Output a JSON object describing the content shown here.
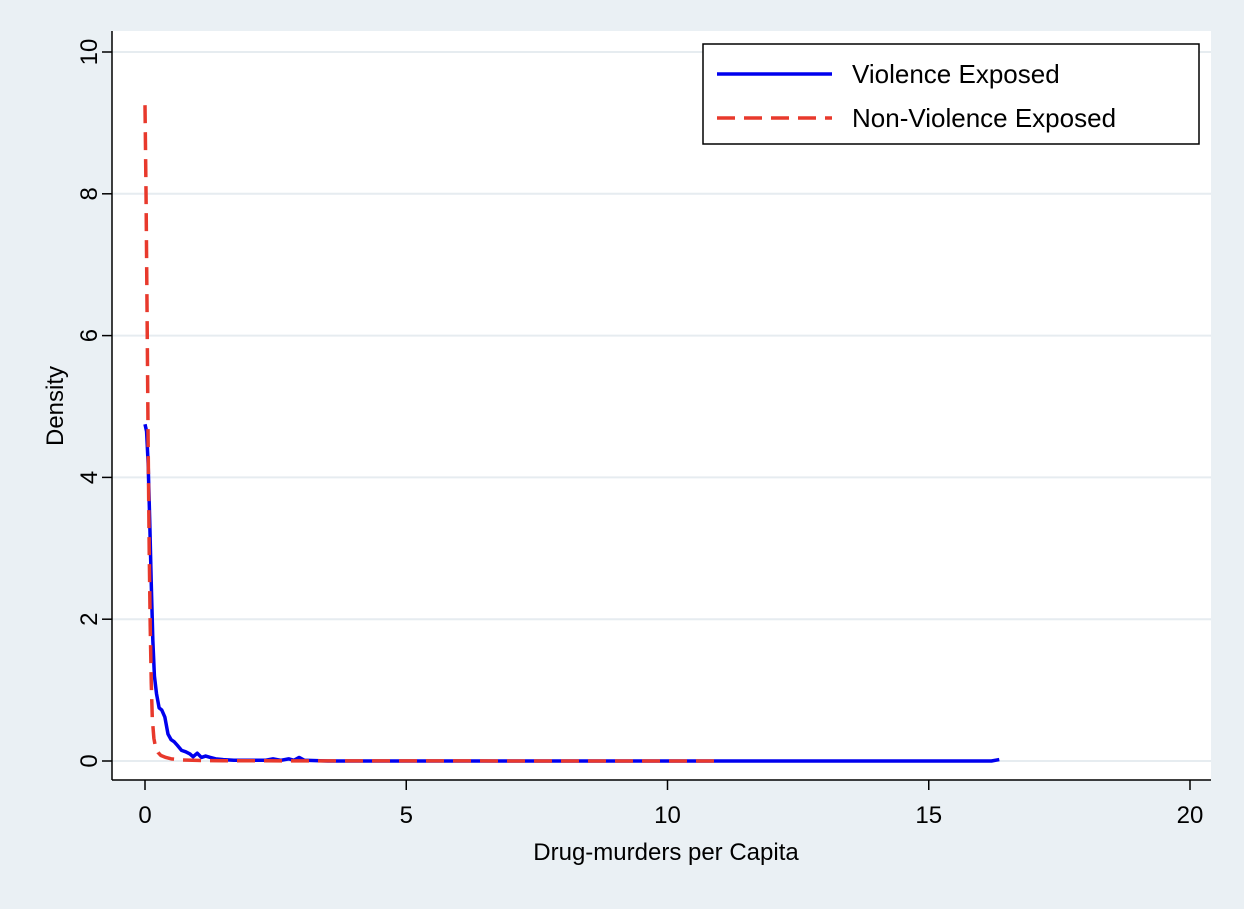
{
  "chart_data": {
    "type": "line",
    "title": "",
    "xlabel": "Drug-murders per Capita",
    "ylabel": "Density",
    "xlim": [
      0,
      20
    ],
    "ylim": [
      0,
      10
    ],
    "xticks": [
      0,
      5,
      10,
      15,
      20
    ],
    "yticks": [
      0,
      2,
      4,
      6,
      8,
      10
    ],
    "grid": "horizontal",
    "legend_position": "top-right",
    "series": [
      {
        "name": "Violence Exposed",
        "color": "#0000ee",
        "style": "solid",
        "points": [
          [
            0.0,
            4.75
          ],
          [
            0.03,
            4.65
          ],
          [
            0.06,
            4.2
          ],
          [
            0.09,
            3.4
          ],
          [
            0.12,
            2.5
          ],
          [
            0.15,
            1.7
          ],
          [
            0.18,
            1.2
          ],
          [
            0.22,
            0.95
          ],
          [
            0.27,
            0.75
          ],
          [
            0.32,
            0.72
          ],
          [
            0.38,
            0.62
          ],
          [
            0.44,
            0.38
          ],
          [
            0.5,
            0.3
          ],
          [
            0.56,
            0.27
          ],
          [
            0.62,
            0.22
          ],
          [
            0.7,
            0.15
          ],
          [
            0.78,
            0.13
          ],
          [
            0.86,
            0.1
          ],
          [
            0.92,
            0.06
          ],
          [
            1.0,
            0.11
          ],
          [
            1.08,
            0.05
          ],
          [
            1.16,
            0.07
          ],
          [
            1.25,
            0.05
          ],
          [
            1.35,
            0.03
          ],
          [
            1.5,
            0.02
          ],
          [
            1.7,
            0.01
          ],
          [
            2.0,
            0.01
          ],
          [
            2.3,
            0.01
          ],
          [
            2.45,
            0.03
          ],
          [
            2.6,
            0.01
          ],
          [
            2.75,
            0.03
          ],
          [
            2.85,
            0.01
          ],
          [
            2.95,
            0.05
          ],
          [
            3.05,
            0.01
          ],
          [
            3.5,
            0.0
          ],
          [
            5.0,
            0.0
          ],
          [
            8.0,
            0.0
          ],
          [
            11.0,
            0.0
          ],
          [
            14.0,
            0.0
          ],
          [
            16.2,
            0.0
          ],
          [
            16.35,
            0.02
          ]
        ]
      },
      {
        "name": "Non-Violence Exposed",
        "color": "#e8392c",
        "style": "dashed",
        "points": [
          [
            0.0,
            9.25
          ],
          [
            0.02,
            8.0
          ],
          [
            0.04,
            6.3
          ],
          [
            0.06,
            4.5
          ],
          [
            0.08,
            3.0
          ],
          [
            0.1,
            1.9
          ],
          [
            0.12,
            1.1
          ],
          [
            0.14,
            0.6
          ],
          [
            0.17,
            0.32
          ],
          [
            0.2,
            0.2
          ],
          [
            0.25,
            0.12
          ],
          [
            0.3,
            0.08
          ],
          [
            0.4,
            0.05
          ],
          [
            0.5,
            0.03
          ],
          [
            0.7,
            0.015
          ],
          [
            1.0,
            0.008
          ],
          [
            1.5,
            0.004
          ],
          [
            3.0,
            0.002
          ],
          [
            6.0,
            0.001
          ],
          [
            10.9,
            0.0
          ]
        ]
      }
    ]
  }
}
